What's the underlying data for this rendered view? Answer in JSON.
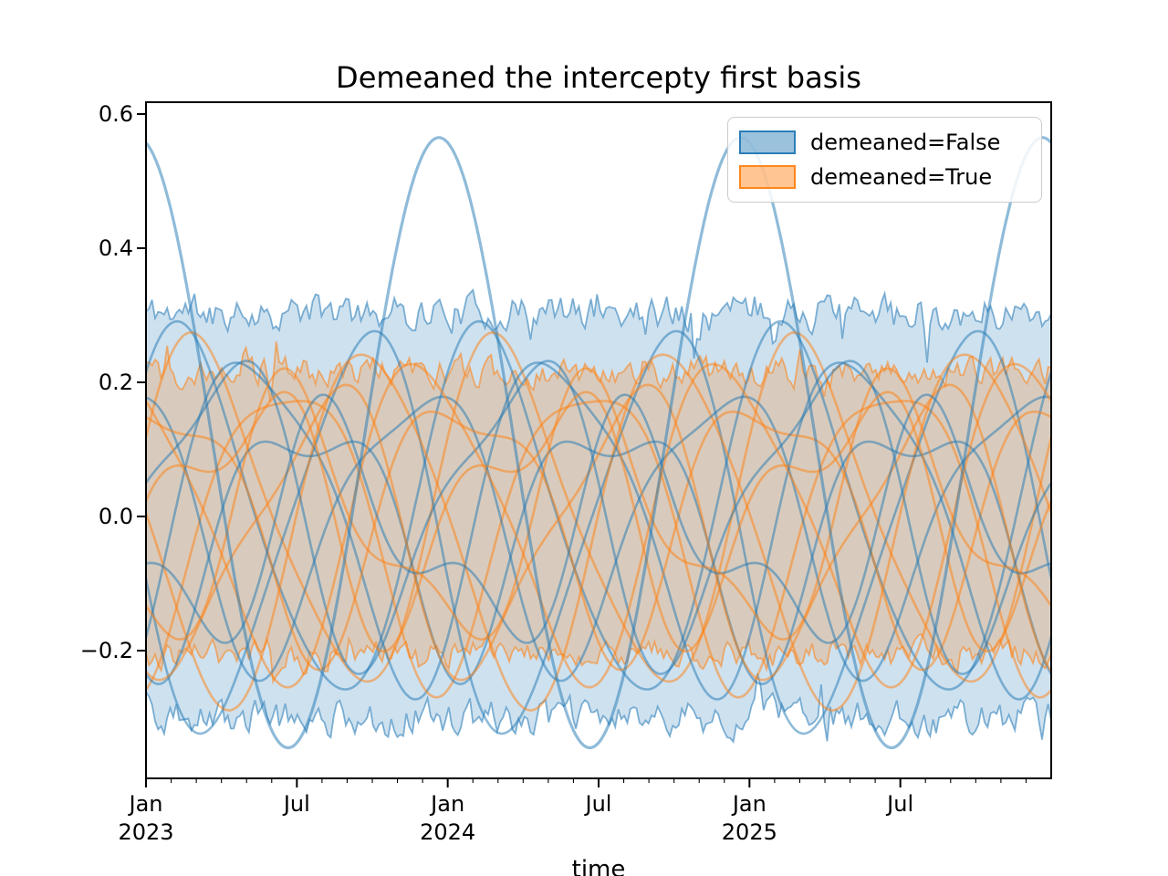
{
  "chart_data": {
    "type": "line",
    "title": "Demeaned the intercepty first basis",
    "xlabel": "time",
    "ylabel": "",
    "x_axis": {
      "start_month_label": "Jan 2023",
      "total_months": 36,
      "minor_tick_every_months": 1,
      "major_ticks": [
        {
          "month": 0,
          "line1": "Jan",
          "line2": "2023"
        },
        {
          "month": 6,
          "line1": "Jul",
          "line2": ""
        },
        {
          "month": 12,
          "line1": "Jan",
          "line2": "2024"
        },
        {
          "month": 18,
          "line1": "Jul",
          "line2": ""
        },
        {
          "month": 24,
          "line1": "Jan",
          "line2": "2025"
        },
        {
          "month": 30,
          "line1": "Jul",
          "line2": ""
        }
      ]
    },
    "y_axis": {
      "lim": [
        -0.3905,
        0.6177
      ],
      "ticks": [
        {
          "value": 0.6,
          "label": "0.6"
        },
        {
          "value": 0.4,
          "label": "0.4"
        },
        {
          "value": 0.2,
          "label": "0.2"
        },
        {
          "value": 0.0,
          "label": "0.0"
        },
        {
          "value": -0.2,
          "label": "−0.2"
        }
      ]
    },
    "legend": [
      {
        "label": "demeaned=False",
        "color": "#1f77b4"
      },
      {
        "label": "demeaned=True",
        "color": "#ff7f0e"
      }
    ],
    "style": {
      "band_fill_alpha": 0.22,
      "band_edge_alpha": 0.55,
      "line_alpha": 0.5,
      "frame_color": "#000000"
    },
    "seed": 11,
    "bands": [
      {
        "group": "demeaned=False",
        "color": "#1f77b4",
        "upper": 0.305,
        "lower": -0.3,
        "noise": 0.022,
        "spike_p": 0.06,
        "spike_amp": 0.05,
        "points": 300
      },
      {
        "group": "demeaned=True",
        "color": "#ff7f0e",
        "upper": 0.215,
        "lower": -0.205,
        "noise": 0.018,
        "spike_p": 0.05,
        "spike_amp": 0.04,
        "points": 300
      }
    ],
    "series": [
      {
        "group": "demeaned=False",
        "color": "#1f77b4",
        "offset": 0.0,
        "a1": 0.27,
        "p1": 1.5,
        "a2": 0.03,
        "p2": 0.6,
        "width": 2.6
      },
      {
        "group": "demeaned=True",
        "color": "#ff7f0e",
        "offset": 0.0,
        "a1": 0.25,
        "p1": 2.2,
        "a2": 0.04,
        "p2": 1.1,
        "width": 2.6
      },
      {
        "group": "demeaned=False",
        "color": "#1f77b4",
        "offset": 0.01,
        "a1": 0.24,
        "p1": 4.4,
        "a2": 0.05,
        "p2": 2.1,
        "width": 2.6
      },
      {
        "group": "demeaned=True",
        "color": "#ff7f0e",
        "offset": 0.0,
        "a1": 0.22,
        "p1": 5.6,
        "a2": 0.05,
        "p2": 2.5,
        "width": 2.6
      },
      {
        "group": "demeaned=False",
        "color": "#1f77b4",
        "offset": -0.02,
        "a1": 0.29,
        "p1": 8.6,
        "a2": 0.04,
        "p2": 4.2,
        "width": 2.6
      },
      {
        "group": "demeaned=True",
        "color": "#ff7f0e",
        "offset": -0.01,
        "a1": 0.26,
        "p1": 9.0,
        "a2": 0.03,
        "p2": 1.0,
        "width": 2.6
      },
      {
        "group": "demeaned=False",
        "color": "#1f77b4",
        "offset": 0.0,
        "a1": 0.2,
        "p1": 10.8,
        "a2": 0.05,
        "p2": 1.2,
        "width": 2.6
      },
      {
        "group": "demeaned=True",
        "color": "#ff7f0e",
        "offset": 0.01,
        "a1": 0.18,
        "p1": 0.7,
        "a2": 0.06,
        "p2": 4.0,
        "width": 2.6
      },
      {
        "group": "demeaned=False",
        "color": "#1f77b4",
        "offset": -0.01,
        "a1": 0.17,
        "p1": 6.5,
        "a2": 0.07,
        "p2": 3.5,
        "width": 2.6
      },
      {
        "group": "demeaned=True",
        "color": "#ff7f0e",
        "offset": -0.02,
        "a1": 0.2,
        "p1": 7.2,
        "a2": 0.05,
        "p2": 2.8,
        "width": 2.6
      },
      {
        "group": "demeaned=False",
        "color": "#1f77b4",
        "offset": 0.02,
        "a1": 0.21,
        "p1": 3.0,
        "a2": 0.06,
        "p2": 5.0,
        "width": 2.6
      },
      {
        "group": "demeaned=True",
        "color": "#ff7f0e",
        "offset": 0.02,
        "a1": 0.15,
        "p1": 4.0,
        "a2": 0.08,
        "p2": 0.2,
        "width": 2.6
      },
      {
        "group": "demeaned=False",
        "color": "#1f77b4",
        "offset": -0.03,
        "a1": 0.14,
        "p1": 7.6,
        "a2": 0.08,
        "p2": 0.8,
        "width": 2.6
      },
      {
        "group": "demeaned=True",
        "color": "#ff7f0e",
        "offset": 0.0,
        "a1": 0.23,
        "p1": 11.2,
        "a2": 0.04,
        "p2": 3.3,
        "width": 2.6
      },
      {
        "group": "demeaned=True",
        "color": "#ff7f0e",
        "offset": -0.01,
        "a1": 0.17,
        "p1": 6.0,
        "a2": 0.07,
        "p2": 5.2,
        "width": 2.6
      },
      {
        "group": "demeaned=False",
        "color": "#1f77b4",
        "offset": 0.11,
        "a1": 0.455,
        "p1": -0.35,
        "a2": 0.0,
        "p2": 0.0,
        "width": 3.2
      }
    ]
  }
}
